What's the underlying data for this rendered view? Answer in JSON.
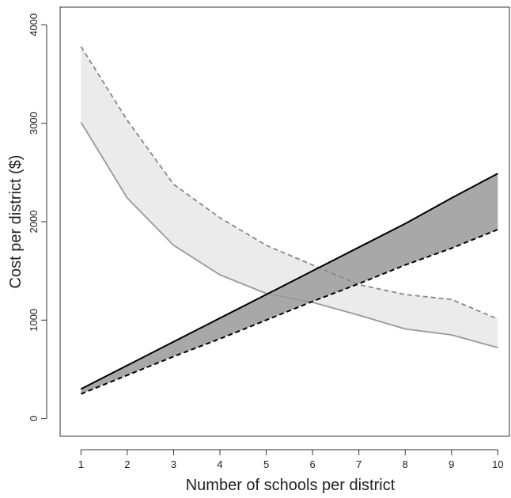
{
  "chart_data": {
    "type": "line",
    "title": "",
    "xlabel": "Number of schools per district",
    "ylabel": "Cost per district ($)",
    "xlim": [
      0.55,
      10.25
    ],
    "ylim": [
      -180,
      4180
    ],
    "x_ticks": [
      1,
      2,
      3,
      4,
      5,
      6,
      7,
      8,
      9,
      10
    ],
    "x_tick_labels": [
      "1",
      "2",
      "3",
      "4",
      "5",
      "6",
      "7",
      "8",
      "9",
      "10"
    ],
    "y_ticks": [
      0,
      1000,
      2000,
      3000,
      4000
    ],
    "y_tick_labels": [
      "0",
      "1000",
      "2000",
      "3000",
      "4000"
    ],
    "grid": false,
    "legend": "none",
    "x": [
      1,
      2,
      3,
      4,
      5,
      6,
      7,
      8,
      9,
      10
    ],
    "series": [
      {
        "line": "solid",
        "color": "#999999",
        "values": [
          3010,
          2240,
          1760,
          1460,
          1270,
          1180,
          1050,
          910,
          850,
          720
        ]
      },
      {
        "line": "dashed",
        "color": "#888888",
        "values": [
          3780,
          3030,
          2380,
          2040,
          1760,
          1560,
          1360,
          1260,
          1210,
          1010
        ]
      },
      {
        "line": "solid",
        "color": "#000000",
        "values": [
          300,
          540,
          780,
          1020,
          1260,
          1500,
          1740,
          1980,
          2240,
          2490
        ]
      },
      {
        "line": "dashed",
        "color": "#000000",
        "values": [
          250,
          440,
          630,
          810,
          1000,
          1190,
          1370,
          1560,
          1730,
          1920
        ]
      }
    ],
    "bands": [
      {
        "lower_series": 0,
        "upper_series": 1,
        "fill": "#ebebeb"
      },
      {
        "lower_series": 3,
        "upper_series": 2,
        "fill": "#a8a8a8"
      }
    ]
  }
}
